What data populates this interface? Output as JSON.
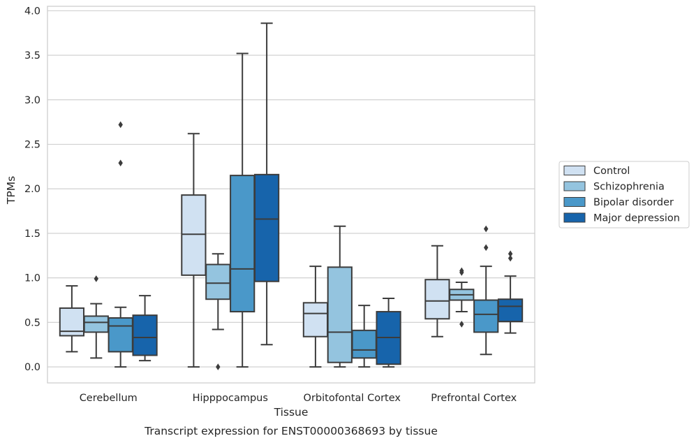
{
  "chart_data": {
    "type": "box",
    "title": "",
    "caption": "Transcript expression for ENST00000368693 by tissue",
    "xlabel": "Tissue",
    "ylabel": "TPMs",
    "ylim": [
      -0.18,
      4.05
    ],
    "yticks": [
      "0.0",
      "0.5",
      "1.0",
      "1.5",
      "2.0",
      "2.5",
      "3.0",
      "3.5",
      "4.0"
    ],
    "grid": true,
    "legend_position": "right",
    "categories": [
      "Cerebellum",
      "Hipppocampus",
      "Orbitofontal Cortex",
      "Prefrontal Cortex"
    ],
    "series": [
      {
        "name": "Control",
        "color": "#d0e1f2",
        "boxes": [
          {
            "whislo": 0.17,
            "q1": 0.35,
            "med": 0.4,
            "q3": 0.66,
            "whishi": 0.91,
            "fliers": []
          },
          {
            "whislo": 0.0,
            "q1": 1.03,
            "med": 1.49,
            "q3": 1.93,
            "whishi": 2.62,
            "fliers": []
          },
          {
            "whislo": 0.0,
            "q1": 0.34,
            "med": 0.6,
            "q3": 0.72,
            "whishi": 1.13,
            "fliers": []
          },
          {
            "whislo": 0.34,
            "q1": 0.54,
            "med": 0.74,
            "q3": 0.98,
            "whishi": 1.36,
            "fliers": []
          }
        ]
      },
      {
        "name": "Schizophrenia",
        "color": "#94c4df",
        "boxes": [
          {
            "whislo": 0.1,
            "q1": 0.39,
            "med": 0.5,
            "q3": 0.57,
            "whishi": 0.71,
            "fliers": [
              0.99
            ]
          },
          {
            "whislo": 0.42,
            "q1": 0.76,
            "med": 0.94,
            "q3": 1.15,
            "whishi": 1.27,
            "fliers": [
              0.0
            ]
          },
          {
            "whislo": 0.0,
            "q1": 0.05,
            "med": 0.39,
            "q3": 1.12,
            "whishi": 1.58,
            "fliers": []
          },
          {
            "whislo": 0.62,
            "q1": 0.75,
            "med": 0.81,
            "q3": 0.87,
            "whishi": 0.95,
            "fliers": [
              0.48,
              1.06,
              1.08
            ]
          }
        ]
      },
      {
        "name": "Bipolar disorder",
        "color": "#4a98c9",
        "boxes": [
          {
            "whislo": 0.0,
            "q1": 0.17,
            "med": 0.46,
            "q3": 0.55,
            "whishi": 0.67,
            "fliers": [
              2.29,
              2.72
            ]
          },
          {
            "whislo": 0.0,
            "q1": 0.62,
            "med": 1.1,
            "q3": 2.15,
            "whishi": 3.52,
            "fliers": []
          },
          {
            "whislo": 0.0,
            "q1": 0.1,
            "med": 0.19,
            "q3": 0.41,
            "whishi": 0.69,
            "fliers": []
          },
          {
            "whislo": 0.14,
            "q1": 0.39,
            "med": 0.59,
            "q3": 0.75,
            "whishi": 1.13,
            "fliers": [
              1.34,
              1.55
            ]
          }
        ]
      },
      {
        "name": "Major depression",
        "color": "#1764ab",
        "boxes": [
          {
            "whislo": 0.07,
            "q1": 0.13,
            "med": 0.33,
            "q3": 0.58,
            "whishi": 0.8,
            "fliers": []
          },
          {
            "whislo": 0.25,
            "q1": 0.96,
            "med": 1.66,
            "q3": 2.16,
            "whishi": 3.86,
            "fliers": []
          },
          {
            "whislo": 0.0,
            "q1": 0.03,
            "med": 0.33,
            "q3": 0.62,
            "whishi": 0.77,
            "fliers": []
          },
          {
            "whislo": 0.38,
            "q1": 0.51,
            "med": 0.68,
            "q3": 0.76,
            "whishi": 1.02,
            "fliers": [
              1.22,
              1.27
            ]
          }
        ]
      }
    ]
  }
}
